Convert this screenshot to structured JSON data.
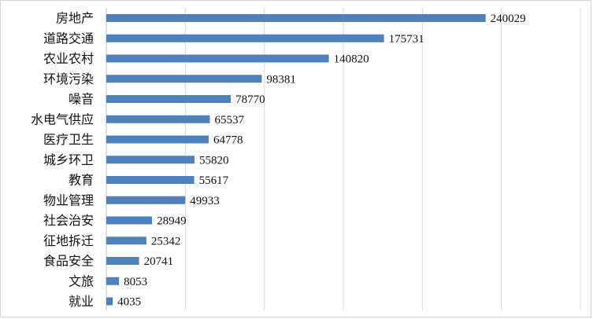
{
  "chart_data": {
    "type": "bar",
    "orientation": "horizontal",
    "categories": [
      "房地产",
      "道路交通",
      "农业农村",
      "环境污染",
      "噪音",
      "水电气供应",
      "医疗卫生",
      "城乡环卫",
      "教育",
      "物业管理",
      "社会治安",
      "征地拆迁",
      "食品安全",
      "文旅",
      "就业"
    ],
    "values": [
      240029,
      175731,
      140820,
      98381,
      78770,
      65537,
      64778,
      55820,
      55617,
      49933,
      28949,
      25342,
      20741,
      8053,
      4035
    ],
    "xlim": [
      0,
      300000
    ],
    "grid": true,
    "legend": "none",
    "bar_color": "#4f81bd",
    "grid_color": "#d9d9d9"
  }
}
